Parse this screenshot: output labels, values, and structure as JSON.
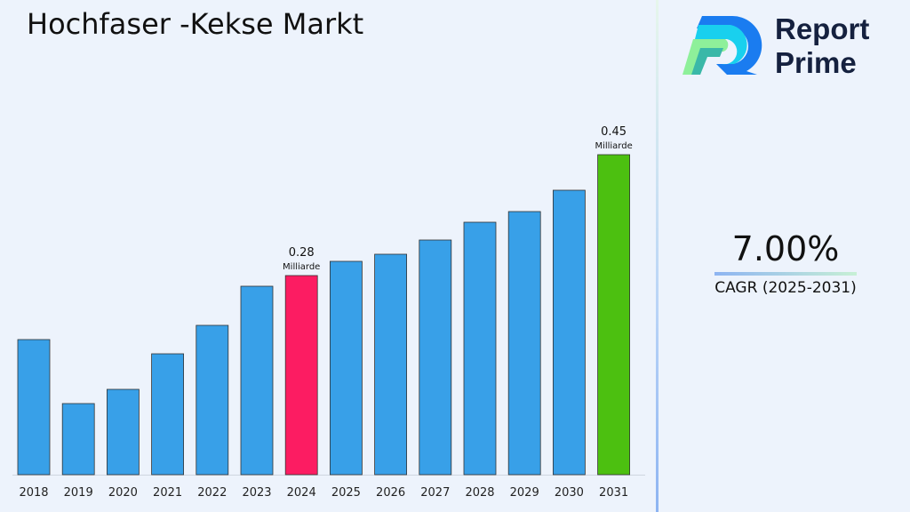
{
  "title": "Hochfaser -Kekse Markt",
  "logo": {
    "line1": "Report",
    "line2": "Prime"
  },
  "cagr": {
    "value": "7.00%",
    "label": "CAGR (2025-2031)"
  },
  "chart_data": {
    "type": "bar",
    "categories": [
      "2018",
      "2019",
      "2020",
      "2021",
      "2022",
      "2023",
      "2024",
      "2025",
      "2026",
      "2027",
      "2028",
      "2029",
      "2030",
      "2031"
    ],
    "values": [
      0.19,
      0.1,
      0.12,
      0.17,
      0.21,
      0.265,
      0.28,
      0.3,
      0.31,
      0.33,
      0.355,
      0.37,
      0.4,
      0.45
    ],
    "colors": {
      "default": "#38a0e8",
      "2024": "#fc1c62",
      "2031": "#4cc010"
    },
    "data_labels": {
      "2024": {
        "value": "0.28",
        "unit": "Milliarde"
      },
      "2031": {
        "value": "0.45",
        "unit": "Milliarde"
      }
    },
    "title": "Hochfaser -Kekse Markt",
    "xlabel": "",
    "ylabel": "",
    "ylim": [
      0,
      0.5
    ],
    "grid": false
  }
}
